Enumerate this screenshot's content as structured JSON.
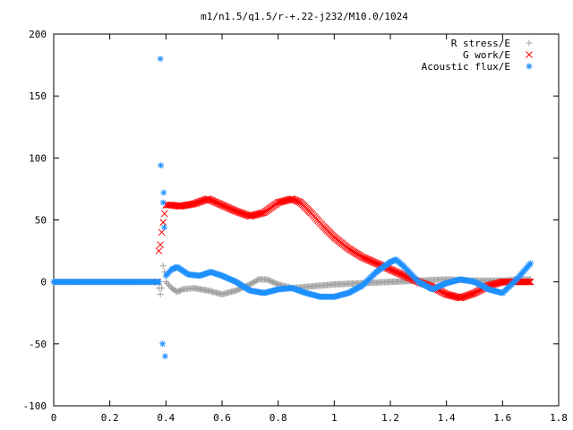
{
  "chart_data": {
    "type": "scatter",
    "title": "m1/n1.5/q1.5/r-+.22-j232/M10.0/1024",
    "xlabel": "",
    "ylabel": "",
    "xlim": [
      0,
      1.8
    ],
    "ylim": [
      -100,
      200
    ],
    "xticks": [
      0,
      0.2,
      0.4,
      0.6,
      0.8,
      1,
      1.2,
      1.4,
      1.6,
      1.8
    ],
    "xtick_labels": [
      "0",
      "0.2",
      "0.4",
      "0.6",
      "0.8",
      "1",
      "1.2",
      "1.4",
      "1.6",
      "1.8"
    ],
    "yticks": [
      -100,
      -50,
      0,
      50,
      100,
      150,
      200
    ],
    "ytick_labels": [
      "-100",
      "-50",
      "0",
      "50",
      "100",
      "150",
      "200"
    ],
    "grid": false,
    "legend_position": "top-right",
    "series": [
      {
        "name": "R stress/E",
        "marker": "+",
        "color": "#a0a0a0",
        "points": [
          [
            0,
            0
          ],
          [
            0.05,
            0
          ],
          [
            0.1,
            0
          ],
          [
            0.15,
            0
          ],
          [
            0.2,
            0
          ],
          [
            0.25,
            0
          ],
          [
            0.3,
            0
          ],
          [
            0.35,
            0
          ],
          [
            0.37,
            0
          ],
          [
            0.38,
            -10
          ],
          [
            0.385,
            -5
          ],
          [
            0.39,
            13
          ],
          [
            0.395,
            8
          ],
          [
            0.4,
            0
          ],
          [
            0.42,
            -5
          ],
          [
            0.44,
            -8
          ],
          [
            0.46,
            -6
          ],
          [
            0.5,
            -5
          ],
          [
            0.55,
            -7
          ],
          [
            0.6,
            -10
          ],
          [
            0.65,
            -7
          ],
          [
            0.7,
            -2
          ],
          [
            0.73,
            2
          ],
          [
            0.76,
            2
          ],
          [
            0.8,
            -2
          ],
          [
            0.85,
            -5
          ],
          [
            0.9,
            -4
          ],
          [
            1.0,
            -2
          ],
          [
            1.1,
            -1
          ],
          [
            1.2,
            0
          ],
          [
            1.3,
            1
          ],
          [
            1.4,
            2
          ],
          [
            1.5,
            1
          ],
          [
            1.6,
            1
          ],
          [
            1.65,
            2
          ],
          [
            1.7,
            2
          ]
        ]
      },
      {
        "name": "G work/E",
        "marker": "x",
        "color": "#ff0000",
        "points": [
          [
            0.37,
            0
          ],
          [
            0.375,
            25
          ],
          [
            0.38,
            30
          ],
          [
            0.385,
            40
          ],
          [
            0.39,
            48
          ],
          [
            0.395,
            55
          ],
          [
            0.4,
            62
          ],
          [
            0.42,
            62
          ],
          [
            0.45,
            61
          ],
          [
            0.5,
            63
          ],
          [
            0.55,
            67
          ],
          [
            0.6,
            62
          ],
          [
            0.65,
            57
          ],
          [
            0.7,
            53
          ],
          [
            0.75,
            56
          ],
          [
            0.8,
            64
          ],
          [
            0.85,
            67
          ],
          [
            0.88,
            64
          ],
          [
            0.92,
            55
          ],
          [
            0.96,
            45
          ],
          [
            1.0,
            36
          ],
          [
            1.05,
            27
          ],
          [
            1.1,
            20
          ],
          [
            1.15,
            15
          ],
          [
            1.2,
            10
          ],
          [
            1.25,
            5
          ],
          [
            1.3,
            0
          ],
          [
            1.35,
            -4
          ],
          [
            1.4,
            -10
          ],
          [
            1.45,
            -13
          ],
          [
            1.5,
            -9
          ],
          [
            1.55,
            -3
          ],
          [
            1.6,
            0
          ],
          [
            1.65,
            0
          ],
          [
            1.7,
            0
          ]
        ]
      },
      {
        "name": "Acoustic flux/E",
        "marker": "*",
        "color": "#1e90ff",
        "points": [
          [
            0,
            0
          ],
          [
            0.05,
            0
          ],
          [
            0.1,
            0
          ],
          [
            0.15,
            0
          ],
          [
            0.2,
            0
          ],
          [
            0.25,
            0
          ],
          [
            0.3,
            0
          ],
          [
            0.35,
            0
          ],
          [
            0.375,
            0
          ],
          [
            0.38,
            180
          ],
          [
            0.382,
            94
          ],
          [
            0.388,
            -50
          ],
          [
            0.39,
            64
          ],
          [
            0.392,
            72
          ],
          [
            0.394,
            44
          ],
          [
            0.397,
            -60
          ],
          [
            0.4,
            5
          ],
          [
            0.42,
            10
          ],
          [
            0.44,
            12
          ],
          [
            0.48,
            6
          ],
          [
            0.52,
            5
          ],
          [
            0.56,
            8
          ],
          [
            0.6,
            5
          ],
          [
            0.65,
            0
          ],
          [
            0.7,
            -7
          ],
          [
            0.75,
            -9
          ],
          [
            0.8,
            -6
          ],
          [
            0.85,
            -5
          ],
          [
            0.9,
            -9
          ],
          [
            0.95,
            -12
          ],
          [
            1.0,
            -12
          ],
          [
            1.05,
            -9
          ],
          [
            1.1,
            -3
          ],
          [
            1.15,
            8
          ],
          [
            1.2,
            16
          ],
          [
            1.22,
            18
          ],
          [
            1.25,
            12
          ],
          [
            1.3,
            0
          ],
          [
            1.35,
            -6
          ],
          [
            1.4,
            -1
          ],
          [
            1.45,
            2
          ],
          [
            1.5,
            0
          ],
          [
            1.55,
            -6
          ],
          [
            1.6,
            -9
          ],
          [
            1.65,
            2
          ],
          [
            1.7,
            15
          ]
        ]
      }
    ]
  }
}
